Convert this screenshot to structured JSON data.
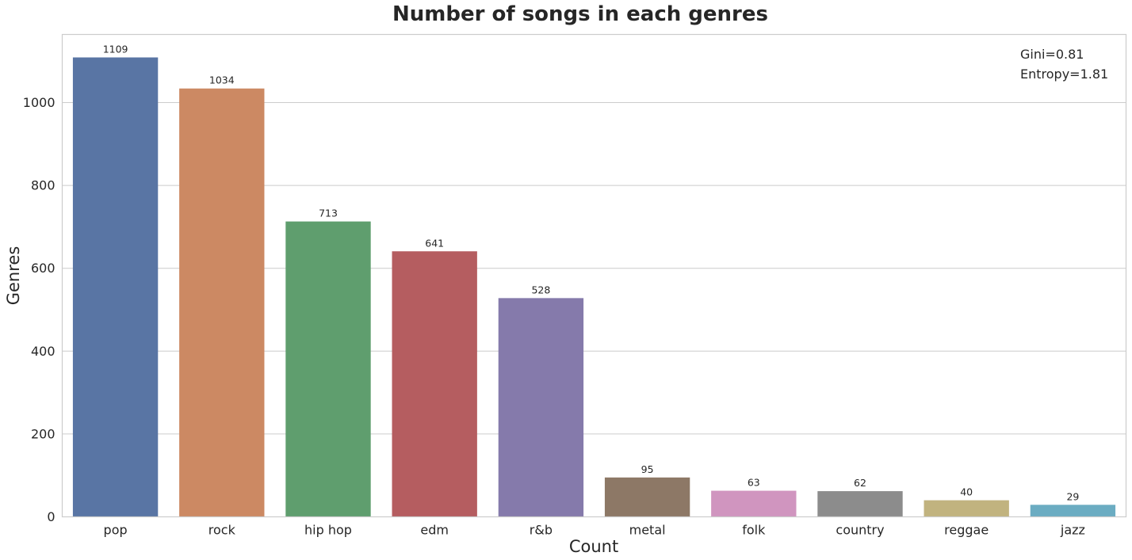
{
  "chart_data": {
    "type": "bar",
    "title": "Number of songs in each genres",
    "xlabel": "Count",
    "ylabel": "Genres",
    "categories": [
      "pop",
      "rock",
      "hip hop",
      "edm",
      "r&b",
      "metal",
      "folk",
      "country",
      "reggae",
      "jazz"
    ],
    "values": [
      1109,
      1034,
      713,
      641,
      528,
      95,
      63,
      62,
      40,
      29
    ],
    "data_labels": [
      "1109",
      "1034",
      "713",
      "641",
      "528",
      "95",
      "63",
      "62",
      "40",
      "29"
    ],
    "colors": [
      "#5975a4",
      "#cc8963",
      "#5f9e6e",
      "#b55d60",
      "#857aab",
      "#8d7866",
      "#d095bf",
      "#8c8c8c",
      "#c1b37f",
      "#6bacc2"
    ],
    "ylim": [
      0,
      1164.45
    ],
    "yticks": [
      0,
      200,
      400,
      600,
      800,
      1000
    ],
    "ytick_labels": [
      "0",
      "200",
      "400",
      "600",
      "800",
      "1000"
    ],
    "grid": "horizontal",
    "annotations": [
      "Gini=0.81",
      "Entropy=1.81"
    ]
  }
}
